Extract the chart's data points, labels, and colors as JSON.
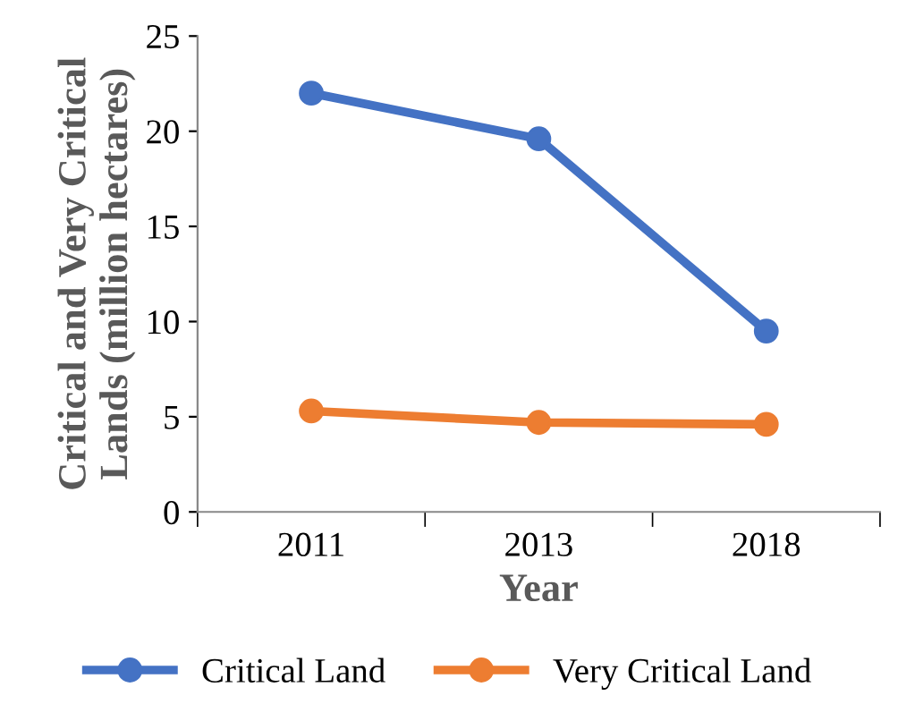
{
  "chart_data": {
    "type": "line",
    "xlabel": "Year",
    "ylabel": "Critical and Very Critical\nLands (million hectares)",
    "categories": [
      "2011",
      "2013",
      "2018"
    ],
    "series": [
      {
        "name": "Critical Land",
        "color": "#4472c4",
        "values": [
          22,
          19.6,
          9.5
        ]
      },
      {
        "name": "Very Critical Land",
        "color": "#ed7d31",
        "values": [
          5.3,
          4.7,
          4.6
        ]
      }
    ],
    "ylim": [
      0,
      25
    ],
    "yticks": [
      0,
      5,
      10,
      15,
      20,
      25
    ],
    "grid": false,
    "legend": "bottom",
    "marker": "circle",
    "line_style": "solid"
  }
}
